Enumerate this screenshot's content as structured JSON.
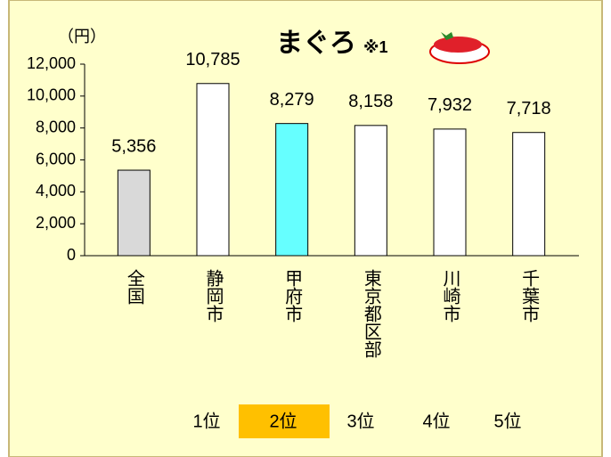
{
  "chart_data": {
    "type": "bar",
    "title": "まぐろ",
    "title_note": "※1",
    "unit": "（円）",
    "categories": [
      "全国",
      "静岡市",
      "甲府市",
      "東京都区部",
      "川崎市",
      "千葉市"
    ],
    "values": [
      5356,
      10785,
      8279,
      8158,
      7932,
      7718
    ],
    "value_labels": [
      "5,356",
      "10,785",
      "8,279",
      "8,158",
      "7,932",
      "7,718"
    ],
    "colors": [
      "#d9d9d9",
      "#ffffff",
      "#66ffff",
      "#ffffff",
      "#ffffff",
      "#ffffff"
    ],
    "ylim": [
      0,
      12000
    ],
    "yticks": [
      0,
      {
        "value": 2000,
        "label": "2,000"
      },
      {
        "value": 4000,
        "label": "4,000"
      },
      {
        "value": 6000,
        "label": "6,000"
      },
      {
        "value": 8000,
        "label": "8,000"
      },
      {
        "value": 10000,
        "label": "10,000"
      },
      {
        "value": 12000,
        "label": "12,000"
      }
    ],
    "rank_labels": [
      {
        "label": "1位",
        "highlight": false
      },
      {
        "label": "2位",
        "highlight": true
      },
      {
        "label": "3位",
        "highlight": false
      },
      {
        "label": "4位",
        "highlight": false
      },
      {
        "label": "5位",
        "highlight": false
      }
    ],
    "highlight_color": "#ffc000"
  }
}
